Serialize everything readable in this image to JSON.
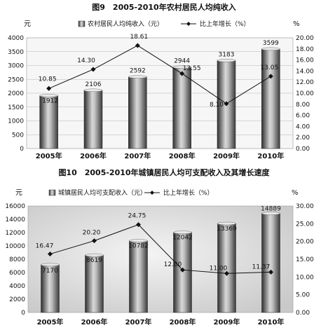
{
  "chart_data": [
    {
      "type": "bar",
      "title": "图9　2005-2010年农村居民人均纯收入",
      "y_unit_left": "元",
      "y_unit_right": "%",
      "categories": [
        "2005年",
        "2006年",
        "2007年",
        "2008年",
        "2009年",
        "2010年"
      ],
      "series": [
        {
          "name": "农村居民人均纯收入（元）",
          "type": "bar",
          "axis": "left",
          "values": [
            1912,
            2106,
            2592,
            2944,
            3183,
            3599
          ]
        },
        {
          "name": "比上年增长（%）",
          "type": "line",
          "axis": "right",
          "values": [
            10.85,
            14.3,
            18.61,
            13.55,
            8.1,
            13.05
          ]
        }
      ],
      "y_left_ticks": [
        "0",
        "500",
        "1000",
        "1500",
        "2000",
        "2500",
        "3000",
        "3500",
        "4000"
      ],
      "y_right_ticks": [
        "0.00",
        "2.00",
        "4.00",
        "6.00",
        "8.00",
        "10.00",
        "12.00",
        "14.00",
        "16.00",
        "18.00",
        "20.00"
      ],
      "ylim_left": [
        0,
        4000
      ],
      "ylim_right": [
        0,
        20
      ],
      "bar_labels": [
        "1912",
        "2106",
        "2592",
        "2944",
        "3183",
        "3599"
      ],
      "line_labels": [
        "10.85",
        "14.30",
        "18.61",
        "13.55",
        "8.10",
        "13.05"
      ],
      "grid": true,
      "legend": "top"
    },
    {
      "type": "bar",
      "title": "图10　2005-2010年城镇居民人均可支配收入及其增长速度",
      "y_unit_left": "元",
      "y_unit_right": "%",
      "categories": [
        "2005年",
        "2006年",
        "2007年",
        "2008年",
        "2009年",
        "2010年"
      ],
      "series": [
        {
          "name": "城镇居民人均可支配收入（元）",
          "type": "bar",
          "axis": "left",
          "values": [
            7170,
            8619,
            10782,
            12042,
            13369,
            14889
          ]
        },
        {
          "name": "比上年增长（%）",
          "type": "line",
          "axis": "right",
          "values": [
            16.47,
            20.2,
            24.75,
            12.0,
            11.0,
            11.37
          ]
        }
      ],
      "y_left_ticks": [
        "0",
        "2000",
        "4000",
        "6000",
        "8000",
        "10000",
        "12000",
        "14000",
        "16000"
      ],
      "y_right_ticks": [
        "0.00",
        "5.00",
        "10.00",
        "15.00",
        "20.00",
        "25.00",
        "30.00"
      ],
      "ylim_left": [
        0,
        16000
      ],
      "ylim_right": [
        0,
        30
      ],
      "bar_labels": [
        "7170",
        "8619",
        "10782",
        "12042",
        "13369",
        "14889"
      ],
      "line_labels": [
        "16.47",
        "20.20",
        "24.75",
        "12.00",
        "11.00",
        "11.37"
      ],
      "grid": false,
      "legend": "top"
    }
  ]
}
